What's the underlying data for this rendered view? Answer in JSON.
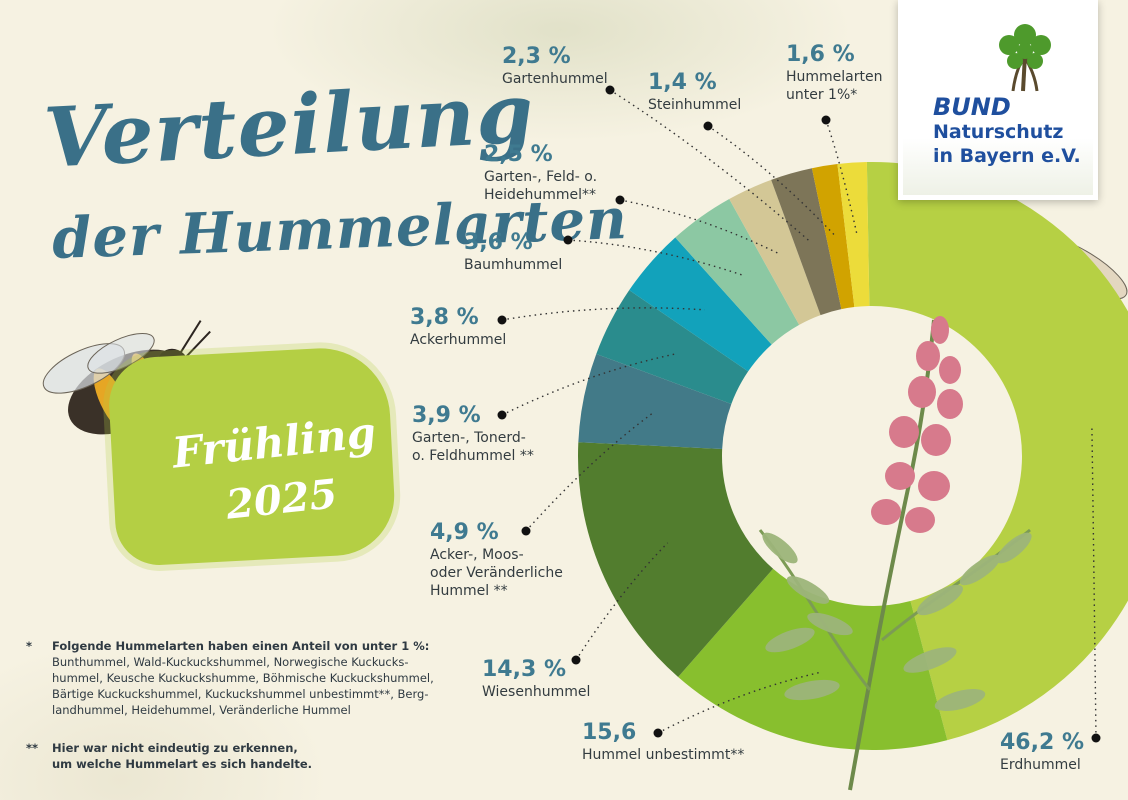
{
  "title": {
    "line1": "Verteilung",
    "line2": "der Hummelarten"
  },
  "season": {
    "line1": "Frühling",
    "line2": "2025"
  },
  "logo": {
    "brand": "BUND",
    "line2": "Naturschutz",
    "line3": "in Bayern e.V.",
    "icon": "tree-logo-icon",
    "color": "#1f4f9e"
  },
  "chart_data": {
    "type": "pie",
    "variant": "donut",
    "slices": [
      {
        "value": 46.2,
        "pct_label": "46,2 %",
        "name": "Erdhummel",
        "color": "#b6d044"
      },
      {
        "value": 15.6,
        "pct_label": "15,6",
        "name": "Hummel unbestimmt**",
        "color": "#88bf2e"
      },
      {
        "value": 14.3,
        "pct_label": "14,3 %",
        "name": "Wiesenhummel",
        "color": "#527d2e"
      },
      {
        "value": 4.9,
        "pct_label": "4,9 %",
        "name": "Acker-, Moos-\noder Veränderliche\nHummel **",
        "color": "#427a88"
      },
      {
        "value": 3.9,
        "pct_label": "3,9 %",
        "name": "Garten-, Tonerd-\no. Feldhummel **",
        "color": "#2a8c8d"
      },
      {
        "value": 3.8,
        "pct_label": "3,8 %",
        "name": "Ackerhummel",
        "color": "#12a2bb"
      },
      {
        "value": 3.6,
        "pct_label": "3,6 %",
        "name": "Baumhummel",
        "color": "#8cc8a3"
      },
      {
        "value": 2.5,
        "pct_label": "2,5 %",
        "name": "Garten-, Feld- o.\nHeidehummel**",
        "color": "#d3c796"
      },
      {
        "value": 2.3,
        "pct_label": "2,3 %",
        "name": "Gartenhummel",
        "color": "#7d7558"
      },
      {
        "value": 1.4,
        "pct_label": "1,4 %",
        "name": "Steinhummel",
        "color": "#d1a300"
      },
      {
        "value": 1.6,
        "pct_label": "1,6 %",
        "name": "Hummelarten\nunter 1%*",
        "color": "#ecdc3a"
      }
    ]
  },
  "notes": {
    "star1": "*",
    "note1_head": "Folgende Hummelarten haben einen Anteil von unter 1 %:",
    "note1_lines": [
      "Bunthummel, Wald-Kuckuckshummel, Norwegische Kuckucks-",
      "hummel, Keusche Kuckuckshumme, Böhmische Kuckuckshummel,",
      "Bärtige Kuckuckshummel, Kuckuckshummel unbestimmt**, Berg-",
      "landhummel, Heidehummel, Veränderliche Hummel"
    ],
    "star2": "**",
    "note2_lines": [
      "Hier war nicht eindeutig zu erkennen,",
      "um welche Hummelart es sich handelte."
    ]
  }
}
